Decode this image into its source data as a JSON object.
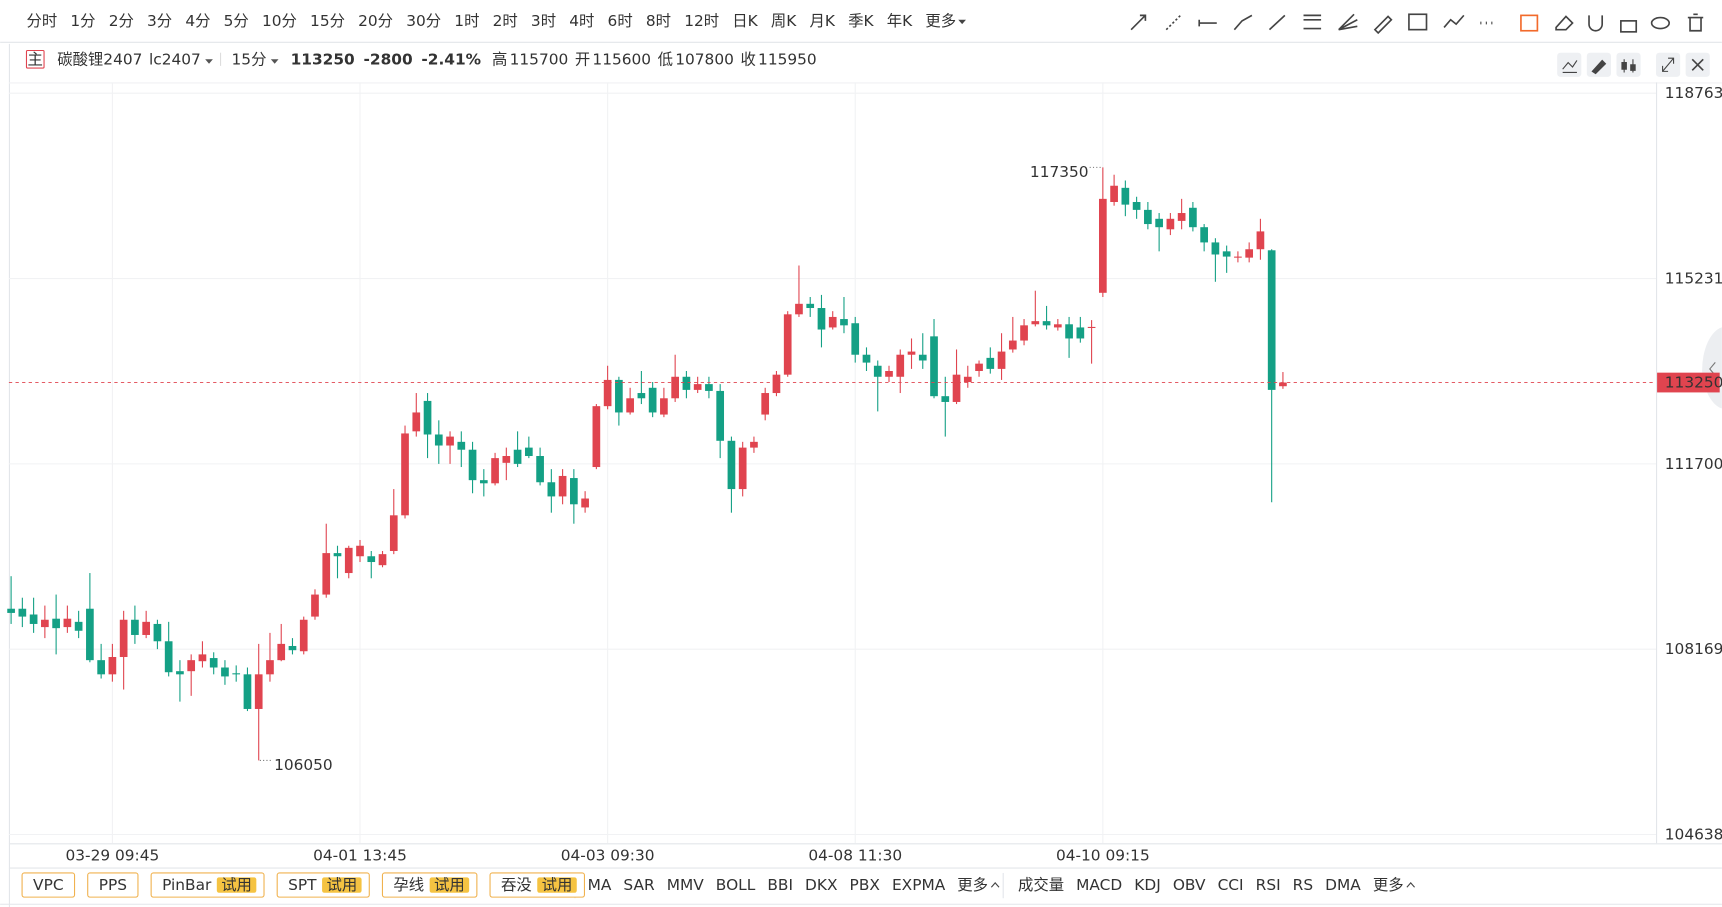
{
  "toolbar": {
    "periods": [
      "分时",
      "1分",
      "2分",
      "3分",
      "4分",
      "5分",
      "10分",
      "15分",
      "20分",
      "30分",
      "1时",
      "2时",
      "3时",
      "4时",
      "6时",
      "8时",
      "12时",
      "日K",
      "周K",
      "月K",
      "季K",
      "年K",
      "更多"
    ],
    "active": 7
  },
  "header": {
    "icon": "主",
    "name": "碳酸锂2407",
    "code": "lc2407",
    "period": "15分",
    "price": "113250",
    "change": "-2800",
    "change_pct": "-2.41%",
    "color": "#14a085",
    "stats": [
      {
        "label": "高",
        "value": "115700",
        "color": "#14a085"
      },
      {
        "label": "开",
        "value": "115600",
        "color": "#14a085"
      },
      {
        "label": "低",
        "value": "107800",
        "color": "#14a085"
      },
      {
        "label": "收",
        "value": "115950",
        "color": "#555"
      }
    ]
  },
  "chart_data": {
    "type": "candlestick",
    "up_color": "#e0444f",
    "down_color": "#14a085",
    "grid": true,
    "ylim": [
      104470,
      118970
    ],
    "yticks": [
      104638,
      108169,
      111700,
      115231,
      118763
    ],
    "ytick_colors": [
      "#14a085",
      "#14a085",
      "#14a085",
      "#14a085",
      "#e0444f"
    ],
    "last_price": 113250,
    "high_label": 117350,
    "low_label": 106050,
    "categories": [
      null,
      null,
      null,
      null,
      null,
      null,
      null,
      null,
      null,
      "03-29 09:45",
      null,
      null,
      null,
      null,
      null,
      null,
      null,
      null,
      null,
      null,
      null,
      null,
      null,
      null,
      null,
      null,
      null,
      null,
      null,
      null,
      null,
      "04-01 13:45",
      null,
      null,
      null,
      null,
      null,
      null,
      null,
      null,
      null,
      null,
      null,
      null,
      null,
      null,
      null,
      null,
      null,
      null,
      null,
      null,
      null,
      "04-03 09:30",
      null,
      null,
      null,
      null,
      null,
      null,
      null,
      null,
      null,
      null,
      null,
      null,
      null,
      null,
      null,
      null,
      null,
      null,
      null,
      null,
      null,
      "04-08 11:30",
      null,
      null,
      null,
      null,
      null,
      null,
      null,
      null,
      null,
      null,
      null,
      null,
      null,
      null,
      null,
      null,
      null,
      null,
      null,
      null,
      null,
      "04-10 09:15",
      null,
      null,
      null,
      null,
      null,
      null,
      null,
      null,
      null,
      null,
      null,
      null,
      null,
      null,
      null,
      null
    ],
    "open": [
      108940,
      108940,
      108830,
      108590,
      108750,
      108590,
      108690,
      108940,
      107960,
      107690,
      108020,
      108730,
      108440,
      108650,
      108320,
      107750,
      107750,
      107940,
      108000,
      107820,
      107710,
      107690,
      107030,
      107690,
      107960,
      108230,
      108130,
      108790,
      109210,
      110000,
      109620,
      109940,
      109940,
      109770,
      110040,
      110720,
      112320,
      112900,
      112260,
      112050,
      112120,
      111970,
      111390,
      111330,
      111720,
      111970,
      112010,
      111850,
      111350,
      111080,
      111430,
      110870,
      111640,
      112800,
      113300,
      112680,
      113050,
      113150,
      112640,
      112950,
      113360,
      113110,
      113220,
      113090,
      112140,
      111220,
      112010,
      112640,
      113050,
      113400,
      114550,
      114750,
      114670,
      114300,
      114460,
      114380,
      113780,
      113570,
      113360,
      113360,
      113780,
      113780,
      114130,
      112990,
      112880,
      113260,
      113470,
      113720,
      113510,
      113880,
      114050,
      114360,
      114420,
      114300,
      114360,
      114300,
      114300,
      114960,
      116690,
      116960,
      116690,
      116540,
      116370,
      116170,
      116330,
      116580,
      116210,
      115920,
      115750,
      115630,
      115630,
      115790,
      115770,
      113180
    ],
    "high": [
      109560,
      109150,
      109150,
      109000,
      109210,
      109000,
      108900,
      109620,
      108270,
      108270,
      108900,
      109000,
      108900,
      108730,
      108690,
      107960,
      108070,
      108320,
      108110,
      107960,
      107860,
      107820,
      108270,
      108480,
      108650,
      108380,
      108790,
      109310,
      110560,
      110140,
      110140,
      110250,
      110040,
      110040,
      111220,
      112430,
      113050,
      113050,
      112530,
      112320,
      112320,
      112120,
      111600,
      111910,
      112010,
      112320,
      112220,
      112010,
      111600,
      111600,
      111600,
      111180,
      112840,
      113570,
      113360,
      113150,
      113470,
      113260,
      113150,
      113780,
      113470,
      113360,
      113360,
      113220,
      112220,
      112120,
      112220,
      113150,
      113470,
      114610,
      115480,
      114880,
      114920,
      114610,
      114880,
      114500,
      113920,
      113670,
      113570,
      113880,
      114090,
      114190,
      114460,
      113360,
      113880,
      113570,
      113670,
      113920,
      114190,
      114500,
      114460,
      115000,
      114710,
      114460,
      114500,
      114500,
      114440,
      117350,
      117210,
      117100,
      116790,
      116690,
      116480,
      116480,
      116750,
      116690,
      116270,
      116000,
      115860,
      115750,
      115920,
      116370,
      115790,
      113450
    ],
    "low": [
      108650,
      108590,
      108480,
      108380,
      108070,
      108480,
      108380,
      107920,
      107610,
      107550,
      107400,
      108270,
      108380,
      108170,
      107650,
      107170,
      107280,
      107820,
      107690,
      107490,
      107550,
      106990,
      106050,
      107550,
      107940,
      108070,
      108070,
      108730,
      109150,
      109520,
      109520,
      109830,
      109520,
      109730,
      109980,
      110660,
      112220,
      111810,
      111700,
      111700,
      111640,
      111140,
      111080,
      111290,
      111390,
      111640,
      111810,
      111290,
      110770,
      110930,
      110560,
      110770,
      111600,
      112740,
      112430,
      112640,
      112840,
      112590,
      112590,
      112880,
      112950,
      113050,
      112950,
      111810,
      110770,
      111080,
      111910,
      112530,
      112990,
      113360,
      114500,
      114500,
      113920,
      114260,
      114190,
      113630,
      113470,
      112700,
      113260,
      113050,
      113510,
      113510,
      112950,
      112220,
      112840,
      113150,
      113360,
      113420,
      113300,
      113820,
      113960,
      114320,
      114260,
      114240,
      113720,
      114010,
      113610,
      114880,
      116620,
      116420,
      116370,
      116170,
      115750,
      116060,
      116170,
      116130,
      115750,
      115170,
      115340,
      115540,
      115540,
      115590,
      110970,
      113130
    ],
    "close": [
      108860,
      108790,
      108650,
      108730,
      108570,
      108750,
      108520,
      107960,
      107690,
      108020,
      108730,
      108440,
      108690,
      108320,
      107730,
      107690,
      107960,
      108070,
      107820,
      107650,
      107690,
      107030,
      107690,
      107960,
      108270,
      108150,
      108730,
      109210,
      110000,
      109940,
      110100,
      110140,
      109830,
      109980,
      110720,
      112280,
      112680,
      112260,
      112050,
      112220,
      111970,
      111390,
      111330,
      111810,
      111850,
      111700,
      111850,
      111350,
      111080,
      111470,
      110930,
      111040,
      112800,
      113300,
      112680,
      112950,
      112950,
      112680,
      112950,
      113360,
      113110,
      113220,
      113090,
      112140,
      111220,
      112010,
      112120,
      113050,
      113400,
      114550,
      114750,
      114670,
      114260,
      114500,
      114340,
      113780,
      113630,
      113360,
      113470,
      113780,
      113840,
      113670,
      112990,
      112880,
      113400,
      113360,
      113610,
      113510,
      113840,
      114050,
      114340,
      114420,
      114340,
      114360,
      114090,
      114090,
      114310,
      116750,
      117000,
      116640,
      116540,
      116270,
      116210,
      116370,
      116480,
      116210,
      115920,
      115690,
      115650,
      115650,
      115790,
      116130,
      113110,
      113250
    ]
  },
  "bottom": {
    "strategies": [
      {
        "name": "VPC"
      },
      {
        "name": "PPS"
      },
      {
        "name": "PinBar",
        "badge": "试用"
      },
      {
        "name": "SPT",
        "badge": "试用"
      },
      {
        "name": "孕线",
        "badge": "试用"
      },
      {
        "name": "吞没",
        "badge": "试用"
      }
    ],
    "main_indicators": [
      "MA",
      "SAR",
      "MMV",
      "BOLL",
      "BBI",
      "DKX",
      "PBX",
      "EXPMA",
      "更多"
    ],
    "sub_indicators": [
      "成交量",
      "MACD",
      "KDJ",
      "OBV",
      "CCI",
      "RSI",
      "RS",
      "DMA",
      "更多"
    ]
  }
}
